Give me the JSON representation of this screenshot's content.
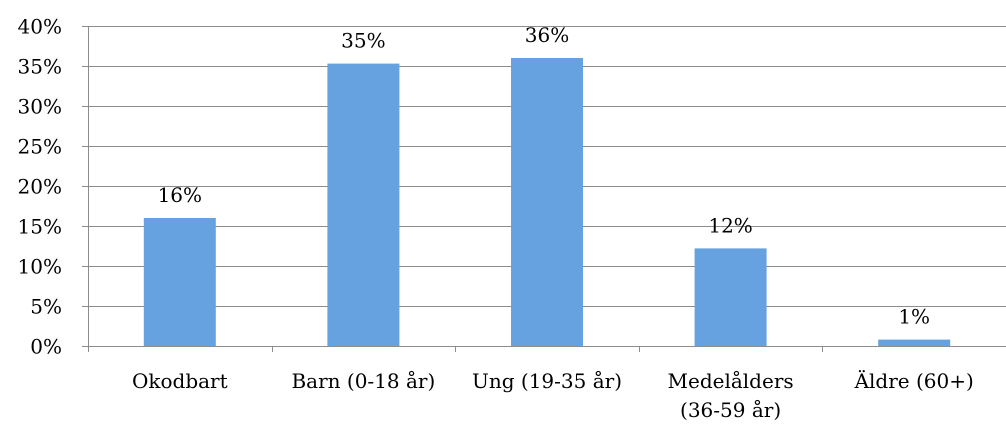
{
  "chart_data": {
    "type": "bar",
    "title": "",
    "xlabel": "",
    "ylabel": "",
    "categories": [
      [
        "Okodbart"
      ],
      [
        "Barn (0-18 år)"
      ],
      [
        "Ung (19-35 år)"
      ],
      [
        "Medelålders",
        "(36-59 år)"
      ],
      [
        "Äldre (60+)"
      ]
    ],
    "values": [
      16,
      35,
      36,
      12,
      1
    ],
    "value_labels": [
      "16%",
      "35%",
      "36%",
      "12%",
      "1%"
    ],
    "bar_values_exact": [
      16,
      35.3,
      36,
      12.2,
      0.8
    ],
    "ylim": [
      0,
      40
    ],
    "yticks": [
      "0%",
      "5%",
      "10%",
      "15%",
      "20%",
      "25%",
      "30%",
      "35%",
      "40%"
    ],
    "grid": true,
    "legend": "none",
    "colors": {
      "bar": "#65A2DF",
      "grid": "#8C8C8C",
      "axis": "#8C8C8C",
      "text": "#000000"
    }
  }
}
